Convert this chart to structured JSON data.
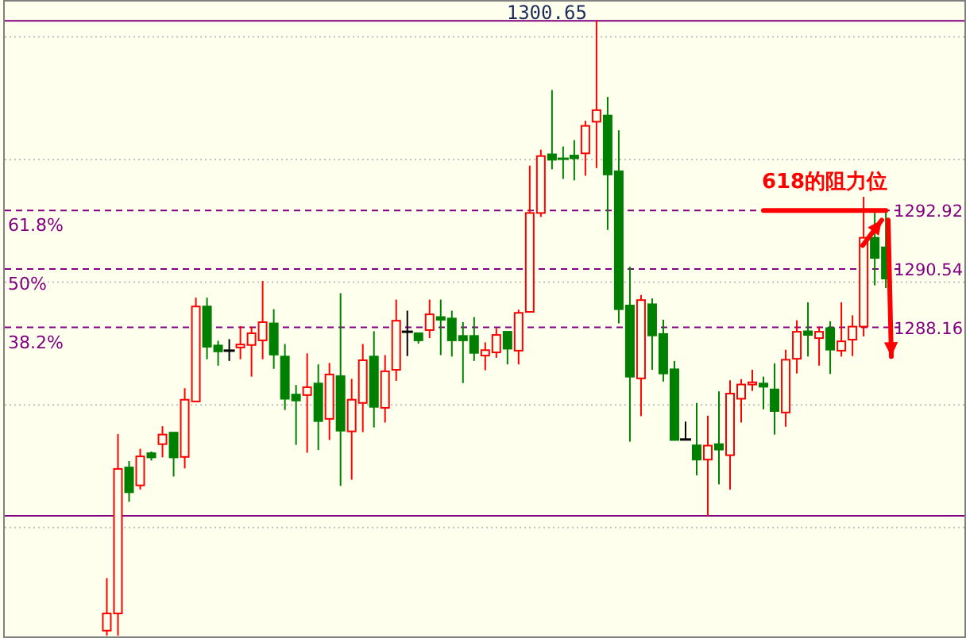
{
  "chart_data": {
    "type": "candlestick",
    "categories": [
      null,
      null,
      null,
      null,
      null,
      null,
      null,
      null,
      null,
      null,
      null,
      null,
      null,
      null,
      null,
      null,
      null,
      null,
      null,
      null,
      null,
      null,
      null,
      null,
      null,
      null,
      null,
      null,
      null,
      null,
      null,
      null,
      null,
      null,
      null,
      null,
      null,
      null,
      null,
      null,
      null,
      null,
      null,
      null,
      null,
      null,
      null,
      null,
      null,
      null,
      null,
      null,
      null,
      null,
      null,
      null,
      null,
      null,
      null,
      null,
      null,
      null,
      null,
      null,
      null,
      null,
      null,
      null,
      null,
      null,
      null
    ],
    "ohlc": [
      [
        1275.8,
        1277.94,
        1275.6,
        1276.5
      ],
      [
        1276.5,
        1283.81,
        1275.6,
        1282.39
      ],
      [
        1282.45,
        1282.71,
        1281.05,
        1281.44
      ],
      [
        1281.72,
        1283.21,
        1281.55,
        1282.9
      ],
      [
        1283.03,
        1283.1,
        1282.73,
        1282.86
      ],
      [
        1283.4,
        1284.13,
        1282.86,
        1283.79
      ],
      [
        1283.87,
        1283.87,
        1282.08,
        1282.86
      ],
      [
        1282.88,
        1285.68,
        1282.41,
        1285.21
      ],
      [
        1285.14,
        1289.37,
        1285.14,
        1289.01
      ],
      [
        1289.01,
        1289.37,
        1286.86,
        1287.37
      ],
      [
        1287.42,
        1287.61,
        1286.6,
        1287.18
      ],
      [
        1287.21,
        1287.68,
        1286.79,
        1287.21
      ],
      [
        1287.34,
        1288.21,
        1286.86,
        1287.46
      ],
      [
        1287.44,
        1288.19,
        1286.15,
        1287.92
      ],
      [
        1287.63,
        1290.05,
        1286.86,
        1288.37
      ],
      [
        1288.32,
        1288.9,
        1286.47,
        1287.05
      ],
      [
        1286.97,
        1287.48,
        1284.79,
        1285.25
      ],
      [
        1285.42,
        1285.81,
        1283.37,
        1285.18
      ],
      [
        1285.4,
        1287.1,
        1283.05,
        1285.72
      ],
      [
        1285.87,
        1286.65,
        1283.16,
        1284.34
      ],
      [
        1284.43,
        1286.71,
        1283.57,
        1286.24
      ],
      [
        1286.17,
        1289.55,
        1281.7,
        1283.95
      ],
      [
        1283.92,
        1286.06,
        1281.95,
        1285.21
      ],
      [
        1285.08,
        1287.48,
        1283.89,
        1286.82
      ],
      [
        1286.97,
        1288.0,
        1284.08,
        1284.92
      ],
      [
        1284.88,
        1287.03,
        1284.28,
        1286.37
      ],
      [
        1286.43,
        1289.29,
        1285.98,
        1288.43
      ],
      [
        1287.98,
        1288.84,
        1286.99,
        1287.98
      ],
      [
        1287.92,
        1287.92,
        1287.5,
        1287.63
      ],
      [
        1288.05,
        1289.29,
        1287.72,
        1288.69
      ],
      [
        1288.58,
        1289.29,
        1287.03,
        1288.47
      ],
      [
        1288.52,
        1288.84,
        1286.97,
        1287.63
      ],
      [
        1287.81,
        1288.37,
        1285.89,
        1287.63
      ],
      [
        1287.81,
        1288.58,
        1286.79,
        1287.12
      ],
      [
        1287.01,
        1287.55,
        1286.41,
        1287.23
      ],
      [
        1287.14,
        1288.13,
        1286.92,
        1287.85
      ],
      [
        1287.98,
        1287.98,
        1286.65,
        1287.29
      ],
      [
        1287.21,
        1288.88,
        1286.65,
        1288.75
      ],
      [
        1288.79,
        1294.75,
        1288.79,
        1292.82
      ],
      [
        1292.82,
        1295.4,
        1292.66,
        1295.14
      ],
      [
        1295.21,
        1297.83,
        1294.6,
        1294.99
      ],
      [
        1295.03,
        1295.53,
        1294.21,
        1295.03
      ],
      [
        1295.16,
        1295.79,
        1294.15,
        1295.05
      ],
      [
        1295.25,
        1296.58,
        1294.34,
        1296.37
      ],
      [
        1296.54,
        1300.65,
        1294.65,
        1297.01
      ],
      [
        1296.79,
        1297.55,
        1292.13,
        1294.39
      ],
      [
        1294.52,
        1296.19,
        1288.32,
        1288.9
      ],
      [
        1289.05,
        1290.63,
        1283.5,
        1286.15
      ],
      [
        1286.08,
        1289.48,
        1284.54,
        1289.27
      ],
      [
        1289.1,
        1289.34,
        1286.43,
        1287.83
      ],
      [
        1287.89,
        1288.47,
        1285.95,
        1286.28
      ],
      [
        1286.45,
        1286.79,
        1283.57,
        1283.57
      ],
      [
        1283.59,
        1284.32,
        1283.59,
        1283.59
      ],
      [
        1283.35,
        1285.08,
        1282.13,
        1282.77
      ],
      [
        1282.77,
        1284.56,
        1280.48,
        1283.34
      ],
      [
        1283.4,
        1285.55,
        1281.76,
        1283.18
      ],
      [
        1282.95,
        1286.0,
        1281.55,
        1285.46
      ],
      [
        1285.25,
        1286.05,
        1284.28,
        1285.83
      ],
      [
        1285.83,
        1286.43,
        1285.57,
        1285.92
      ],
      [
        1285.87,
        1286.15,
        1284.82,
        1285.74
      ],
      [
        1285.63,
        1286.69,
        1283.79,
        1284.75
      ],
      [
        1284.69,
        1287.25,
        1284.11,
        1286.84
      ],
      [
        1286.88,
        1288.45,
        1286.28,
        1287.98
      ],
      [
        1288.0,
        1289.18,
        1286.97,
        1287.85
      ],
      [
        1287.72,
        1288.19,
        1286.6,
        1287.98
      ],
      [
        1288.13,
        1288.41,
        1286.26,
        1287.25
      ],
      [
        1287.21,
        1289.18,
        1286.97,
        1287.59
      ],
      [
        1287.66,
        1288.65,
        1286.99,
        1288.19
      ],
      [
        1288.19,
        1293.48,
        1287.79,
        1291.81
      ],
      [
        1291.81,
        1292.99,
        1289.87,
        1290.99
      ],
      [
        1291.42,
        1292.99,
        1289.76,
        1290.15
      ]
    ],
    "colors": [
      "#ff0000",
      "#ff0000",
      "#008000",
      "#ff0000",
      "#008000",
      "#ff0000",
      "#008000",
      "#ff0000",
      "#ff0000",
      "#008000",
      "#008000",
      "#000000",
      "#ff0000",
      "#ff0000",
      "#ff0000",
      "#008000",
      "#008000",
      "#008000",
      "#ff0000",
      "#008000",
      "#ff0000",
      "#008000",
      "#ff0000",
      "#ff0000",
      "#008000",
      "#ff0000",
      "#ff0000",
      "#000000",
      "#008000",
      "#ff0000",
      "#008000",
      "#008000",
      "#008000",
      "#008000",
      "#ff0000",
      "#ff0000",
      "#008000",
      "#ff0000",
      "#ff0000",
      "#ff0000",
      "#008000",
      "#008000",
      "#008000",
      "#ff0000",
      "#ff0000",
      "#008000",
      "#008000",
      "#008000",
      "#ff0000",
      "#008000",
      "#008000",
      "#008000",
      "#000000",
      "#008000",
      "#ff0000",
      "#008000",
      "#ff0000",
      "#ff0000",
      "#ff0000",
      "#008000",
      "#008000",
      "#ff0000",
      "#ff0000",
      "#008000",
      "#ff0000",
      "#008000",
      "#ff0000",
      "#ff0000",
      "#ff0000",
      "#008000",
      "#008000"
    ],
    "series": [
      {
        "type": "line",
        "name": "618的阻力位",
        "color": "#ff0000",
        "values": [
          null,
          null,
          null,
          null,
          null,
          null,
          null,
          null,
          null,
          null,
          null,
          null,
          null,
          null,
          null,
          null,
          null,
          null,
          null,
          null,
          null,
          null,
          null,
          null,
          null,
          null,
          null,
          null,
          null,
          null,
          null,
          null,
          null,
          null,
          null,
          null,
          null,
          null,
          null,
          null,
          null,
          null,
          null,
          null,
          null,
          null,
          null,
          null,
          null,
          null,
          null,
          null,
          null,
          null,
          null,
          null,
          null,
          null,
          null,
          1292.92,
          1292.92,
          1292.92,
          1292.92,
          1292.92,
          1292.92,
          1292.92,
          1292.92,
          1292.92,
          1292.92,
          1292.92,
          1292.92
        ]
      }
    ],
    "ylim": [
      1275.5,
      1301.5
    ],
    "yticks": [
      {
        "value": 1280,
        "label": null
      },
      {
        "value": 1285,
        "label": null
      },
      {
        "value": 1290,
        "label": null
      },
      {
        "value": 1295,
        "label": null
      },
      {
        "value": 1300,
        "label": null
      }
    ],
    "grid": "y",
    "ref_lines": [
      {
        "axis": "y",
        "value": 1300.65,
        "label": "1300.65",
        "color": "#800080"
      },
      {
        "axis": "y",
        "value": 1292.92,
        "label": "1292.92",
        "color": "#800080",
        "line_style": "dashed"
      },
      {
        "axis": "y",
        "value": 1290.54,
        "label": "1290.54",
        "color": "#800080",
        "line_style": "dashed"
      },
      {
        "axis": "y",
        "value": 1288.16,
        "label": "1288.16",
        "color": "#800080",
        "line_style": "dashed"
      },
      {
        "axis": "y",
        "value": 1280.48,
        "color": "#800080"
      }
    ],
    "annotations": [
      "61.8%",
      "50%",
      "38.2%"
    ]
  }
}
